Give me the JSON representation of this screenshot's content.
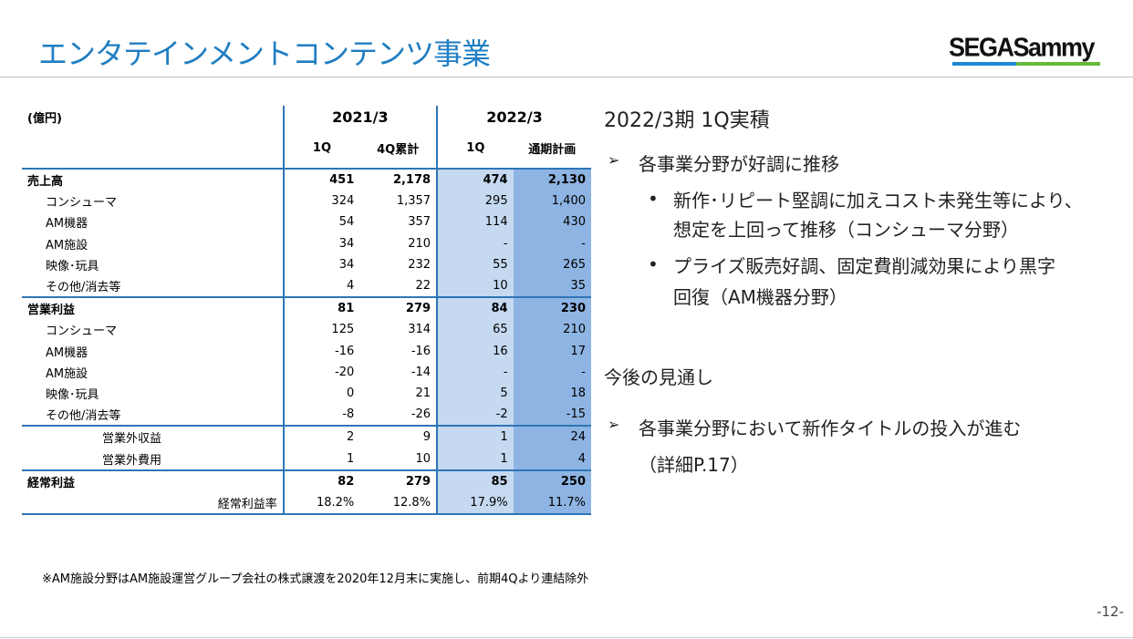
{
  "title": "エンタテインメントコンテンツ事業",
  "logo_text": "SEGASammy",
  "table": {
    "unit": "(億円)",
    "periods": [
      "2021/3",
      "2022/3"
    ],
    "columns": [
      "1Q",
      "4Q累計",
      "1Q",
      "通期計画"
    ],
    "rows": [
      {
        "label": "売上高",
        "values": [
          "451",
          "2,178",
          "474",
          "2,130"
        ]
      },
      {
        "label": "コンシューマ",
        "values": [
          "324",
          "1,357",
          "295",
          "1,400"
        ]
      },
      {
        "label": "AM機器",
        "values": [
          "54",
          "357",
          "114",
          "430"
        ]
      },
      {
        "label": "AM施設",
        "values": [
          "34",
          "210",
          "-",
          "-"
        ]
      },
      {
        "label": "映像･玩具",
        "values": [
          "34",
          "232",
          "55",
          "265"
        ]
      },
      {
        "label": "その他/消去等",
        "values": [
          "4",
          "22",
          "10",
          "35"
        ]
      },
      {
        "label": "営業利益",
        "values": [
          "81",
          "279",
          "84",
          "230"
        ]
      },
      {
        "label": "コンシューマ",
        "values": [
          "125",
          "314",
          "65",
          "210"
        ]
      },
      {
        "label": "AM機器",
        "values": [
          "-16",
          "-16",
          "16",
          "17"
        ]
      },
      {
        "label": "AM施設",
        "values": [
          "-20",
          "-14",
          "-",
          "-"
        ]
      },
      {
        "label": "映像･玩具",
        "values": [
          "0",
          "21",
          "5",
          "18"
        ]
      },
      {
        "label": "その他/消去等",
        "values": [
          "-8",
          "-26",
          "-2",
          "-15"
        ]
      },
      {
        "label": "営業外収益",
        "values": [
          "2",
          "9",
          "1",
          "24"
        ]
      },
      {
        "label": "営業外費用",
        "values": [
          "1",
          "10",
          "1",
          "4"
        ]
      },
      {
        "label": "経常利益",
        "values": [
          "82",
          "279",
          "85",
          "250"
        ]
      },
      {
        "label": "経常利益率",
        "values": [
          "18.2%",
          "12.8%",
          "17.9%",
          "11.7%"
        ]
      }
    ]
  },
  "right": {
    "heading1": "2022/3期 1Q実積",
    "bullet1": "各事業分野が好調に推移",
    "sub1_line1": "新作･リピート堅調に加えコスト未発生等により、",
    "sub1_line2": "想定を上回って推移（コンシューマ分野）",
    "sub2_line1": "プライズ販売好調、固定費削減効果により黒字",
    "sub2_line2": "回復（AM機器分野）",
    "heading2": "今後の見通し",
    "bullet2": "各事業分野において新作タイトルの投入が進む",
    "bullet2_line2": "（詳細P.17）",
    "arrow": "➢",
    "dot": "•"
  },
  "footnote": "※AM施設分野はAM施設運営グループ会社の株式譲渡を2020年12月末に実施し、前期4Qより連結除外",
  "page_number": "-12-",
  "colors": {
    "title": "#1f7ec2",
    "border": "#2e75b6",
    "col_1q": "#c5d9f1",
    "col_plan": "#8eb4e3"
  }
}
